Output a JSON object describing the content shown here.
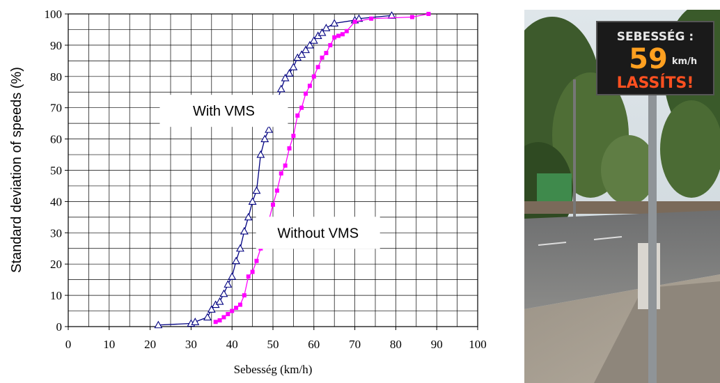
{
  "chart_data": {
    "type": "line",
    "title": "",
    "xlabel": "Sebesség (km/h)",
    "ylabel": "Standard deviation of speeds (%)",
    "xlim": [
      0,
      100
    ],
    "ylim": [
      0,
      100
    ],
    "x_ticks": [
      0,
      10,
      20,
      30,
      40,
      50,
      60,
      70,
      80,
      90,
      100
    ],
    "y_ticks": [
      0,
      10,
      20,
      30,
      40,
      50,
      60,
      70,
      80,
      90,
      100
    ],
    "grid": true,
    "annotations": [
      {
        "text": "With VMS",
        "x": 38,
        "y": 69
      },
      {
        "text": "Without VMS",
        "x": 61,
        "y": 30
      }
    ],
    "series": [
      {
        "name": "With VMS",
        "color": "#000080",
        "marker": "triangle-open",
        "points": [
          [
            22,
            0.5
          ],
          [
            30,
            1
          ],
          [
            31,
            1.5
          ],
          [
            34,
            3
          ],
          [
            35,
            5.5
          ],
          [
            36,
            7
          ],
          [
            37,
            8
          ],
          [
            38,
            10.5
          ],
          [
            39,
            13.5
          ],
          [
            40,
            16
          ],
          [
            41,
            21
          ],
          [
            42,
            25
          ],
          [
            43,
            30.5
          ],
          [
            44,
            35
          ],
          [
            45,
            40
          ],
          [
            46,
            43.5
          ],
          [
            47,
            55
          ],
          [
            48,
            60
          ],
          [
            49,
            63
          ],
          [
            50,
            67.5
          ],
          [
            51,
            72
          ],
          [
            52,
            76
          ],
          [
            53,
            79.5
          ],
          [
            54,
            81
          ],
          [
            55,
            83
          ],
          [
            56,
            86
          ],
          [
            57,
            87
          ],
          [
            58,
            88.5
          ],
          [
            59,
            90
          ],
          [
            60,
            91.5
          ],
          [
            61,
            93
          ],
          [
            62,
            94
          ],
          [
            63,
            95.5
          ],
          [
            65,
            97
          ],
          [
            70,
            98
          ],
          [
            71,
            98.5
          ],
          [
            79,
            99.5
          ]
        ]
      },
      {
        "name": "Without VMS",
        "color": "#ff00ff",
        "marker": "square-filled",
        "points": [
          [
            36,
            1.5
          ],
          [
            37,
            2
          ],
          [
            38,
            3
          ],
          [
            39,
            4
          ],
          [
            40,
            5
          ],
          [
            41,
            6
          ],
          [
            42,
            7
          ],
          [
            43,
            10
          ],
          [
            44,
            16
          ],
          [
            45,
            17.5
          ],
          [
            46,
            21
          ],
          [
            47,
            25
          ],
          [
            48,
            29
          ],
          [
            49,
            34
          ],
          [
            50,
            39
          ],
          [
            51,
            43.5
          ],
          [
            52,
            49
          ],
          [
            53,
            51.5
          ],
          [
            54,
            57
          ],
          [
            55,
            61
          ],
          [
            56,
            67.5
          ],
          [
            57,
            70
          ],
          [
            58,
            74.5
          ],
          [
            59,
            77
          ],
          [
            60,
            80
          ],
          [
            61,
            83
          ],
          [
            62,
            86
          ],
          [
            63,
            87.5
          ],
          [
            64,
            90
          ],
          [
            65,
            92.5
          ],
          [
            66,
            93
          ],
          [
            67,
            93.5
          ],
          [
            68,
            94.5
          ],
          [
            70,
            97.5
          ],
          [
            74,
            98.5
          ],
          [
            84,
            99
          ],
          [
            88,
            100
          ]
        ]
      }
    ]
  },
  "photo": {
    "sign": {
      "label": "SEBESSÉG :",
      "speed": "59",
      "unit": "km/h",
      "message": "LASSÍTS!"
    }
  }
}
